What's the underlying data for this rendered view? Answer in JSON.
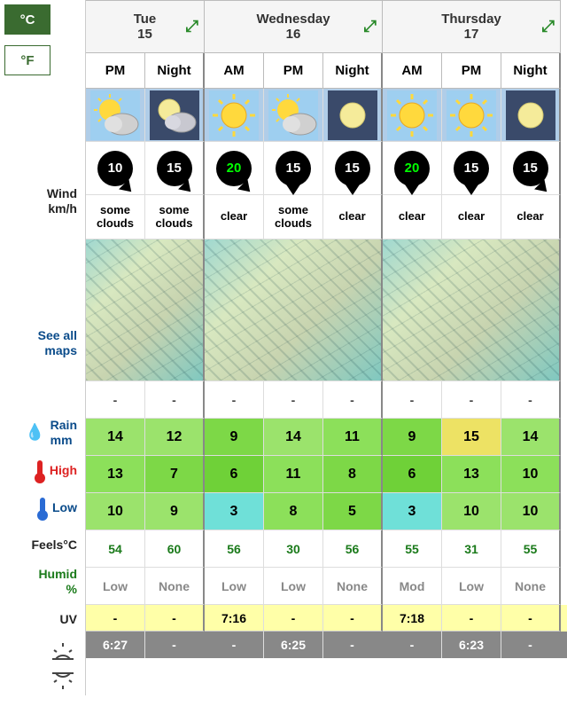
{
  "units": {
    "celsius": "°C",
    "fahrenheit": "°F"
  },
  "labels": {
    "wind": "Wind",
    "wind_unit": "km/h",
    "see_all": "See all",
    "maps": "maps",
    "rain": "Rain",
    "rain_unit": "mm",
    "high": "High",
    "low": "Low",
    "feels": "Feels°C",
    "humid": "Humid",
    "humid_unit": "%",
    "uv": "UV"
  },
  "days": [
    {
      "name": "Tue",
      "date": "15",
      "periods": [
        "PM",
        "Night"
      ],
      "width_cols": 2
    },
    {
      "name": "Wednesday",
      "date": "16",
      "periods": [
        "AM",
        "PM",
        "Night"
      ],
      "width_cols": 3
    },
    {
      "name": "Thursday",
      "date": "17",
      "periods": [
        "AM",
        "PM",
        "Night"
      ],
      "width_cols": 3
    }
  ],
  "columns": [
    {
      "period": "PM",
      "icon": "partly",
      "wind": 10,
      "wind_color": "white",
      "wind_dir": "se",
      "desc": [
        "some",
        "clouds"
      ],
      "rain": "-",
      "high": 14,
      "high_bg": "#9be36c",
      "low": 13,
      "low_bg": "#8ce05a",
      "feels": 10,
      "feels_bg": "#9be36c",
      "humid": 54,
      "uv": "Low",
      "sunrise": "-",
      "sunset": "6:27",
      "day_end": false
    },
    {
      "period": "Night",
      "icon": "moon-cloud",
      "wind": 15,
      "wind_color": "white",
      "wind_dir": "se",
      "desc": [
        "some",
        "clouds"
      ],
      "rain": "-",
      "high": 12,
      "high_bg": "#9be36c",
      "low": 7,
      "low_bg": "#7dd847",
      "feels": 9,
      "feels_bg": "#9be36c",
      "humid": 60,
      "uv": "None",
      "sunrise": "-",
      "sunset": "-",
      "day_end": true
    },
    {
      "period": "AM",
      "icon": "sun",
      "wind": 20,
      "wind_color": "green",
      "wind_dir": "se",
      "desc": [
        "clear"
      ],
      "rain": "-",
      "high": 9,
      "high_bg": "#7dd847",
      "low": 6,
      "low_bg": "#6fd138",
      "feels": 3,
      "feels_bg": "#6fe0d8",
      "humid": 56,
      "uv": "Low",
      "sunrise": "7:16",
      "sunset": "-",
      "day_end": false
    },
    {
      "period": "PM",
      "icon": "partly",
      "wind": 15,
      "wind_color": "white",
      "wind_dir": "s",
      "desc": [
        "some",
        "clouds"
      ],
      "rain": "-",
      "high": 14,
      "high_bg": "#9be36c",
      "low": 11,
      "low_bg": "#8ce05a",
      "feels": 8,
      "feels_bg": "#8ce05a",
      "humid": 30,
      "uv": "Low",
      "sunrise": "-",
      "sunset": "6:25",
      "day_end": false
    },
    {
      "period": "Night",
      "icon": "moon",
      "wind": 15,
      "wind_color": "white",
      "wind_dir": "s",
      "desc": [
        "clear"
      ],
      "rain": "-",
      "high": 11,
      "high_bg": "#8ce05a",
      "low": 8,
      "low_bg": "#7dd847",
      "feels": 5,
      "feels_bg": "#7dd847",
      "humid": 56,
      "uv": "None",
      "sunrise": "-",
      "sunset": "-",
      "day_end": true
    },
    {
      "period": "AM",
      "icon": "sun",
      "wind": 20,
      "wind_color": "green",
      "wind_dir": "s",
      "desc": [
        "clear"
      ],
      "rain": "-",
      "high": 9,
      "high_bg": "#7dd847",
      "low": 6,
      "low_bg": "#6fd138",
      "feels": 3,
      "feels_bg": "#6fe0d8",
      "humid": 55,
      "uv": "Mod",
      "sunrise": "7:18",
      "sunset": "-",
      "day_end": false
    },
    {
      "period": "PM",
      "icon": "sun",
      "wind": 15,
      "wind_color": "white",
      "wind_dir": "s",
      "desc": [
        "clear"
      ],
      "rain": "-",
      "high": 15,
      "high_bg": "#ede264",
      "low": 13,
      "low_bg": "#8ce05a",
      "feels": 10,
      "feels_bg": "#9be36c",
      "humid": 31,
      "uv": "Low",
      "sunrise": "-",
      "sunset": "6:23",
      "day_end": false
    },
    {
      "period": "Night",
      "icon": "moon",
      "wind": 15,
      "wind_color": "white",
      "wind_dir": "se",
      "desc": [
        "clear"
      ],
      "rain": "-",
      "high": 14,
      "high_bg": "#9be36c",
      "low": 10,
      "low_bg": "#8ce05a",
      "feels": 10,
      "feels_bg": "#9be36c",
      "humid": 55,
      "uv": "None",
      "sunrise": "-",
      "sunset": "-",
      "day_end": true
    }
  ]
}
